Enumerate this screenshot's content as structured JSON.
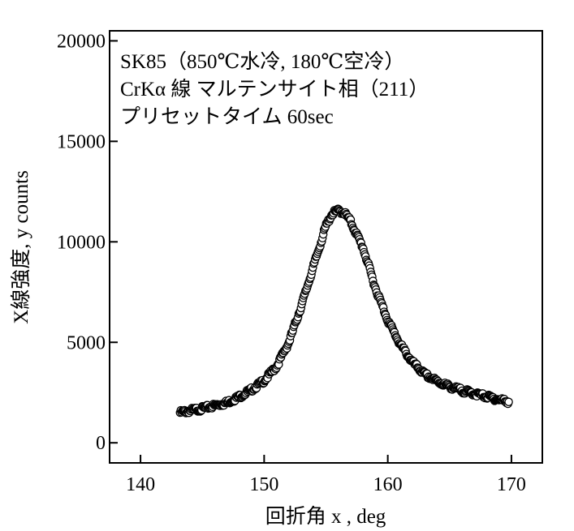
{
  "chart_data": {
    "type": "scatter",
    "annotations": [
      "SK85（850℃水冷, 180℃空冷）",
      "CrKα 線 マルテンサイト相（211）",
      "プリセットタイム 60sec"
    ],
    "xlabel": "回折角 x , deg",
    "ylabel": "X線強度, y counts",
    "xlim": [
      137.5,
      172.5
    ],
    "ylim": [
      -1000,
      20500
    ],
    "xticks": [
      140,
      150,
      160,
      170
    ],
    "yticks": [
      0,
      5000,
      10000,
      15000,
      20000
    ],
    "grid": false,
    "legend": "none",
    "marker": "open-circle",
    "curve": {
      "x": [
        143.2,
        144,
        145,
        146,
        147,
        148,
        149,
        150,
        151,
        152,
        153,
        154,
        155,
        155.5,
        156,
        156.5,
        157,
        158,
        159,
        160,
        161,
        162,
        163,
        164,
        165,
        166,
        167,
        168,
        169,
        169.8
      ],
      "y": [
        1500,
        1600,
        1700,
        1850,
        2000,
        2300,
        2650,
        3100,
        3800,
        5000,
        6800,
        8800,
        10800,
        11400,
        11550,
        11450,
        11000,
        9700,
        7700,
        6100,
        4900,
        4000,
        3400,
        3050,
        2800,
        2600,
        2450,
        2300,
        2150,
        2050
      ]
    }
  }
}
